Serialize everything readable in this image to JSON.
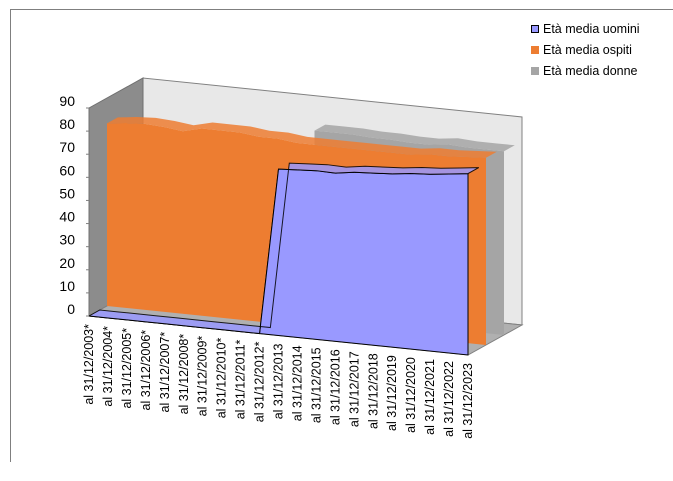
{
  "chart_data": {
    "type": "area",
    "title": "",
    "xlabel": "",
    "ylabel": "",
    "ylim": [
      0,
      90
    ],
    "yticks": [
      0,
      10,
      20,
      30,
      40,
      50,
      60,
      70,
      80,
      90
    ],
    "grid": false,
    "legend_position": "top-right",
    "categories": [
      "al 31/12/2003*",
      "al 31/12/2004*",
      "al 31/12/2005*",
      "al 31/12/2006*",
      "al 31/12/2007*",
      "al 31/12/2008*",
      "al 31/12/2009*",
      "al 31/12/2010*",
      "al 31/12/2011*",
      "al 31/12/2012*",
      "al 31/12/2013",
      "al 31/12/2014",
      "al 31/12/2015",
      "al 31/12/2016",
      "al 31/12/2017",
      "al 31/12/2018",
      "al 31/12/2019",
      "al 31/12/2020",
      "al 31/12/2021",
      "al 31/12/2022",
      "al 31/12/2023"
    ],
    "series": [
      {
        "name": "Età media uomini",
        "color": "#9999ff",
        "values": [
          0,
          0,
          0,
          0,
          0,
          0,
          0,
          0,
          0,
          0,
          72,
          72.5,
          73,
          72.8,
          74,
          74.5,
          75,
          76,
          76.5,
          77.5,
          78.5
        ]
      },
      {
        "name": "Età media ospiti",
        "color": "#ed7d31",
        "values": [
          79,
          80,
          80.5,
          80,
          79,
          81,
          81,
          81,
          80,
          80,
          79,
          79,
          79,
          79,
          79,
          79,
          79,
          80,
          80,
          80.5,
          81
        ]
      },
      {
        "name": "Età media donne",
        "color": "#a5a5a5",
        "values": [
          null,
          null,
          null,
          null,
          null,
          null,
          null,
          null,
          null,
          null,
          80,
          80,
          80,
          79.5,
          79.5,
          79,
          79,
          80,
          79.5,
          79.5,
          79.5
        ]
      }
    ]
  }
}
